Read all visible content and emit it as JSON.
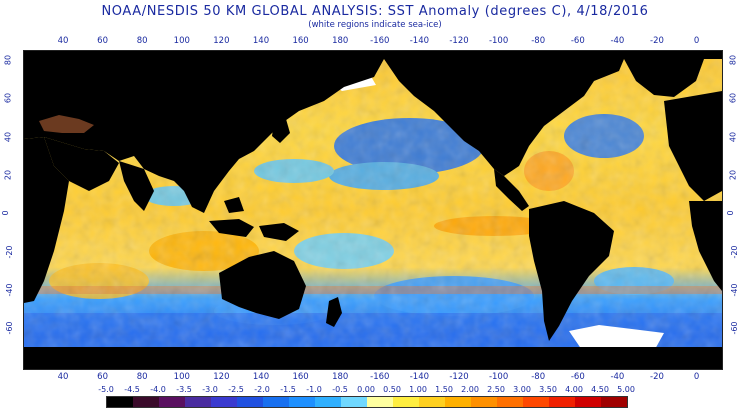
{
  "header": {
    "title": "NOAA/NESDIS 50 KM GLOBAL ANALYSIS: SST Anomaly (degrees C), 4/18/2016",
    "subtitle": "(white regions indicate sea-ice)"
  },
  "axes": {
    "top_lon": [
      "40",
      "60",
      "80",
      "100",
      "120",
      "140",
      "160",
      "180",
      "-160",
      "-140",
      "-120",
      "-100",
      "-80",
      "-60",
      "-40",
      "-20",
      "0"
    ],
    "bottom_lon": [
      "40",
      "60",
      "80",
      "100",
      "120",
      "140",
      "160",
      "180",
      "-160",
      "-140",
      "-120",
      "-100",
      "-80",
      "-60",
      "-40",
      "-20",
      "0"
    ],
    "left_lat": [
      "80",
      "60",
      "40",
      "20",
      "0",
      "-20",
      "-40",
      "-60"
    ],
    "right_lat": [
      "80",
      "60",
      "40",
      "20",
      "0",
      "-20",
      "-40",
      "-60"
    ]
  },
  "colorbar": {
    "labels": [
      "-5.0",
      "-4.5",
      "-4.0",
      "-3.5",
      "-3.0",
      "-2.5",
      "-2.0",
      "-1.5",
      "-1.0",
      "-0.5",
      "0.00",
      "0.50",
      "1.00",
      "1.50",
      "2.00",
      "2.50",
      "3.00",
      "3.50",
      "4.00",
      "4.50",
      "5.00"
    ],
    "colors": [
      "#000000",
      "#3a0a2a",
      "#5a1060",
      "#4a2ca0",
      "#3a3ad0",
      "#2050e0",
      "#1870f0",
      "#1e90ff",
      "#30b0ff",
      "#70d8ff",
      "#ffffa0",
      "#ffee40",
      "#ffd020",
      "#ffb000",
      "#ff9000",
      "#ff7000",
      "#ff4800",
      "#f02000",
      "#d00000",
      "#a00000"
    ]
  },
  "colors": {
    "land": "#000000",
    "ice": "#ffffff",
    "warm_base": "#ffd030",
    "cool_base": "#3090ff",
    "frame": "#222222",
    "text": "#1a2aa0"
  }
}
